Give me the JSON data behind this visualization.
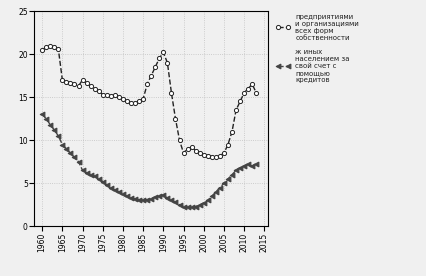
{
  "title": "",
  "series1_label": "предприятиями\nи организациями\nвсех форм\nсобственности",
  "series2_label": "ж иных\nнаселением за\nсвой счет с\nпомощью\nкредитов",
  "series1": {
    "x": [
      1960,
      1961,
      1962,
      1963,
      1964,
      1965,
      1966,
      1967,
      1968,
      1969,
      1970,
      1971,
      1972,
      1973,
      1974,
      1975,
      1976,
      1977,
      1978,
      1979,
      1980,
      1981,
      1982,
      1983,
      1984,
      1985,
      1986,
      1987,
      1988,
      1989,
      1990,
      1991,
      1992,
      1993,
      1994,
      1995,
      1996,
      1997,
      1998,
      1999,
      2000,
      2001,
      2002,
      2003,
      2004,
      2005,
      2006,
      2007,
      2008,
      2009,
      2010,
      2011,
      2012,
      2013
    ],
    "y": [
      20.5,
      20.8,
      20.9,
      20.8,
      20.6,
      17.0,
      16.8,
      16.7,
      16.5,
      16.3,
      17.0,
      16.6,
      16.3,
      16.0,
      15.7,
      15.3,
      15.2,
      15.1,
      15.2,
      15.0,
      14.8,
      14.5,
      14.3,
      14.3,
      14.5,
      14.8,
      16.5,
      17.5,
      18.5,
      19.5,
      20.2,
      19.0,
      15.5,
      12.5,
      10.0,
      8.5,
      9.0,
      9.2,
      8.8,
      8.5,
      8.3,
      8.2,
      8.1,
      8.0,
      8.2,
      8.5,
      9.5,
      11.0,
      13.5,
      14.5,
      15.5,
      16.0,
      16.5,
      15.5
    ]
  },
  "series2": {
    "x": [
      1960,
      1961,
      1962,
      1963,
      1964,
      1965,
      1966,
      1967,
      1968,
      1969,
      1970,
      1971,
      1972,
      1973,
      1974,
      1975,
      1976,
      1977,
      1978,
      1979,
      1980,
      1981,
      1982,
      1983,
      1984,
      1985,
      1986,
      1987,
      1988,
      1989,
      1990,
      1991,
      1992,
      1993,
      1994,
      1995,
      1996,
      1997,
      1998,
      1999,
      2000,
      2001,
      2002,
      2003,
      2004,
      2005,
      2006,
      2007,
      2008,
      2009,
      2010,
      2011,
      2012,
      2013
    ],
    "y": [
      13.0,
      12.5,
      11.8,
      11.2,
      10.5,
      9.5,
      9.0,
      8.5,
      8.0,
      7.5,
      6.5,
      6.2,
      6.0,
      5.8,
      5.5,
      5.2,
      4.8,
      4.5,
      4.2,
      4.0,
      3.8,
      3.5,
      3.3,
      3.2,
      3.1,
      3.0,
      3.1,
      3.2,
      3.4,
      3.5,
      3.6,
      3.3,
      3.0,
      2.8,
      2.5,
      2.3,
      2.2,
      2.2,
      2.3,
      2.5,
      2.7,
      3.0,
      3.5,
      4.0,
      4.5,
      5.0,
      5.5,
      6.0,
      6.5,
      6.8,
      7.0,
      7.2,
      7.0,
      7.2
    ]
  },
  "xlim": [
    1958,
    2016
  ],
  "ylim": [
    0,
    25
  ],
  "xticks": [
    1960,
    1965,
    1970,
    1975,
    1980,
    1985,
    1990,
    1995,
    2000,
    2005,
    2010,
    2015
  ],
  "yticks": [
    0,
    5,
    10,
    15,
    20,
    25
  ],
  "line1_color": "#222222",
  "line2_color": "#444444",
  "marker1": "o",
  "marker2": "<",
  "grid_color": "#bbbbbb",
  "bg_color": "#f0f0f0"
}
